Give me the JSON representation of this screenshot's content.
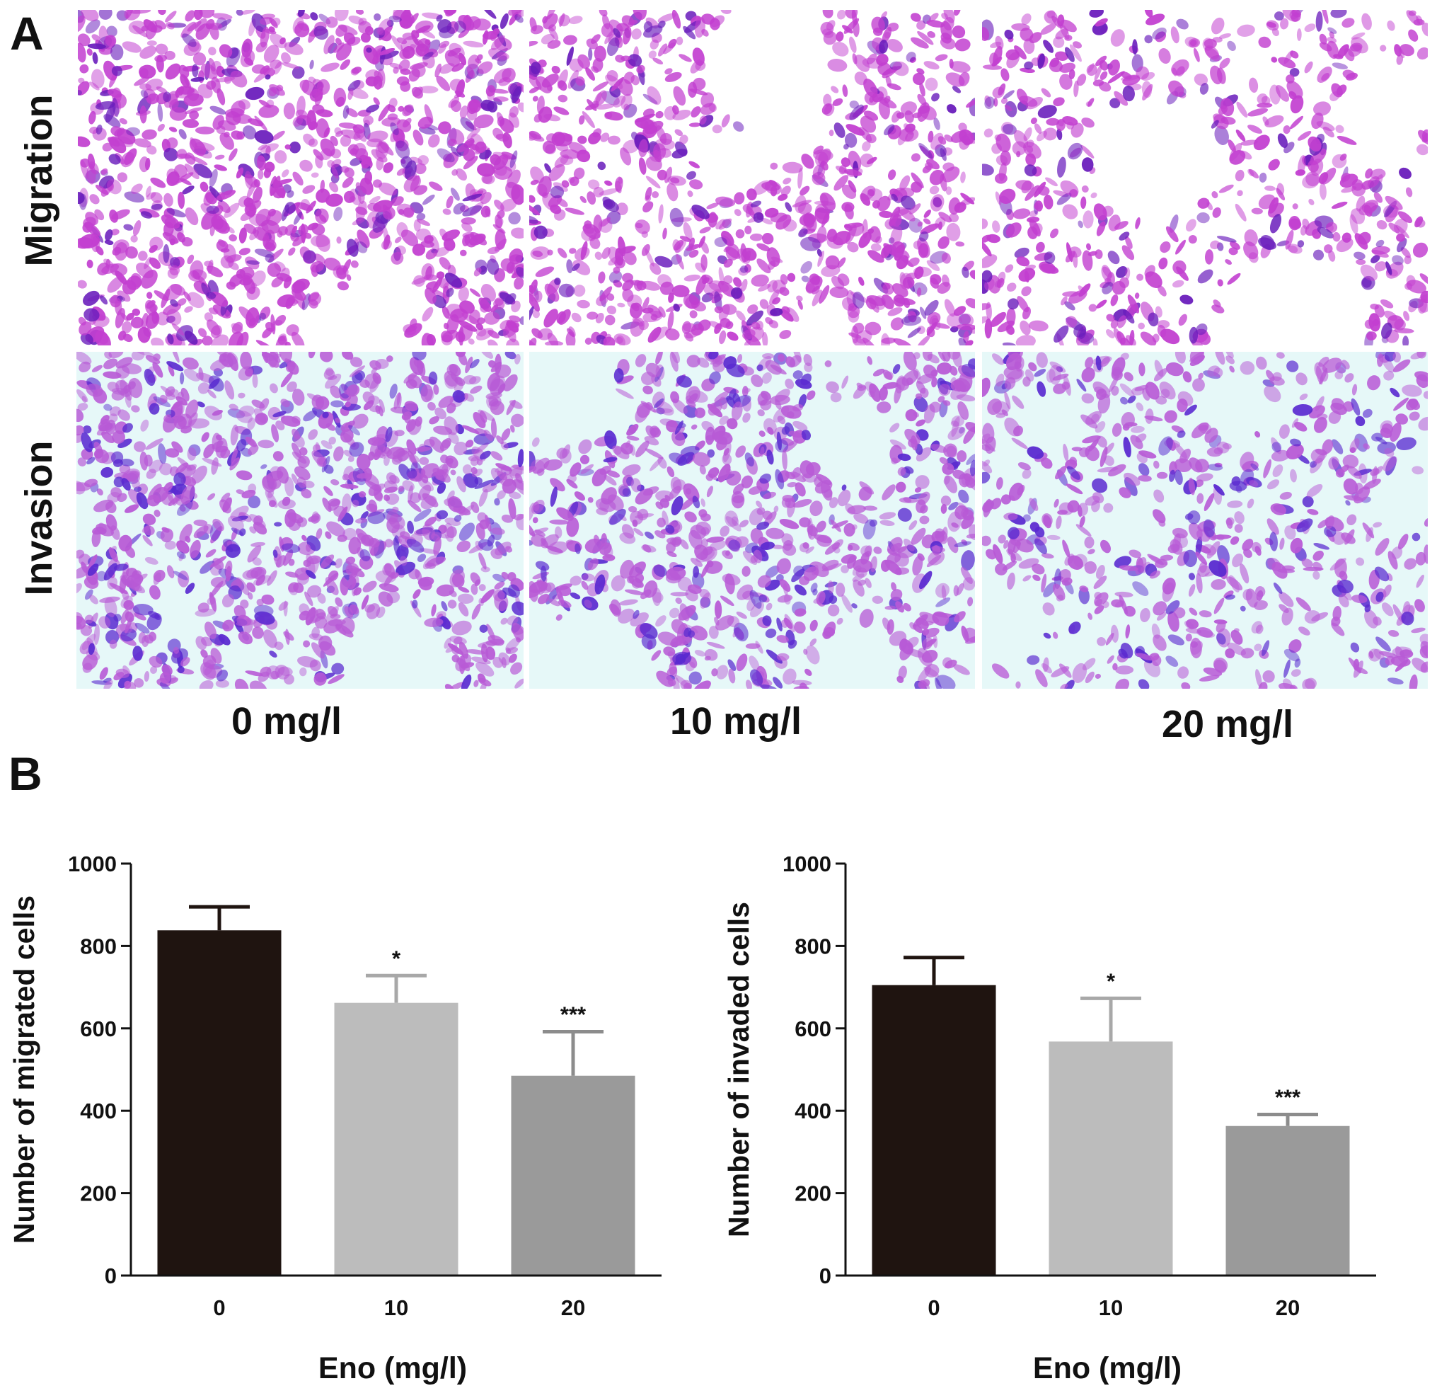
{
  "panels": {
    "a": {
      "letter": "A"
    },
    "b": {
      "letter": "B"
    }
  },
  "micrographs": {
    "rows": [
      {
        "label": "Migration",
        "background": "#ffffff",
        "stain": "#c23fd0",
        "dark_stain": "#6a1dbc"
      },
      {
        "label": "Invasion",
        "background": "#e6f8f8",
        "stain": "#b85ad6",
        "dark_stain": "#5a2ad0"
      }
    ],
    "columns": [
      {
        "label": "0 mg/l",
        "open_area": 0.15
      },
      {
        "label": "10 mg/l",
        "open_area": 0.25
      },
      {
        "label": "20 mg/l",
        "open_area": 0.45
      }
    ]
  },
  "colors": {
    "bar_0": "#1f1410",
    "bar_10": "#bcbcbc",
    "bar_20": "#9a9a9a",
    "error_0": "#1f1410",
    "error_10": "#a8a8a8",
    "error_20": "#8c8c8c"
  },
  "chart_data": [
    {
      "type": "bar",
      "ylabel": "Number of migrated cells",
      "xlabel": "Eno (mg/l)",
      "categories": [
        "0",
        "10",
        "20"
      ],
      "values": [
        838,
        662,
        485
      ],
      "errors": [
        57,
        66,
        107
      ],
      "significance": [
        "",
        "*",
        "***"
      ],
      "ylim": [
        0,
        1000
      ],
      "yticks": [
        0,
        200,
        400,
        600,
        800,
        1000
      ],
      "grid": false,
      "legend": "none"
    },
    {
      "type": "bar",
      "ylabel": "Number of invaded cells",
      "xlabel": "Eno (mg/l)",
      "categories": [
        "0",
        "10",
        "20"
      ],
      "values": [
        705,
        568,
        363
      ],
      "errors": [
        67,
        105,
        28
      ],
      "significance": [
        "",
        "*",
        "***"
      ],
      "ylim": [
        0,
        1000
      ],
      "yticks": [
        0,
        200,
        400,
        600,
        800,
        1000
      ],
      "grid": false,
      "legend": "none"
    }
  ]
}
